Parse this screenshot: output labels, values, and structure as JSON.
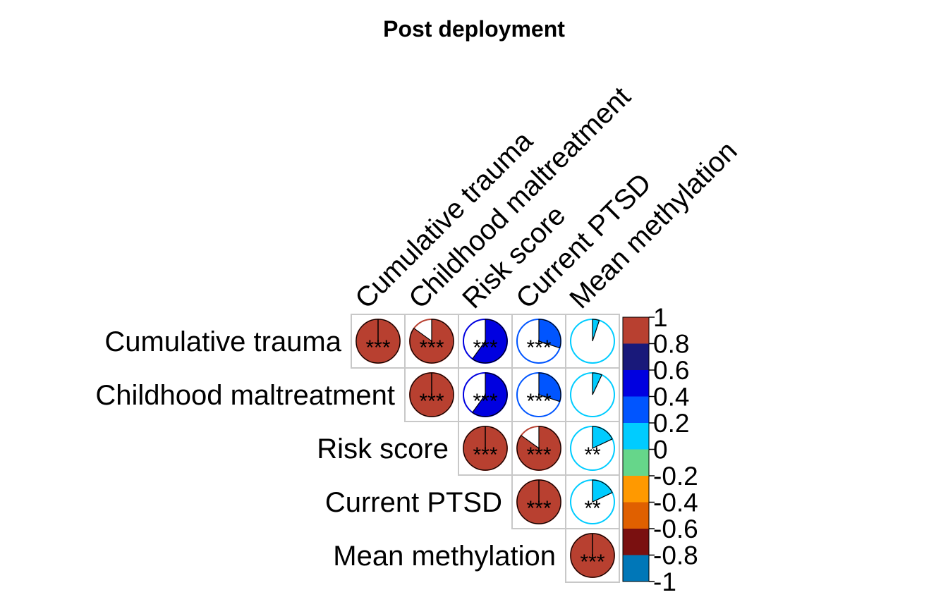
{
  "chart_data": {
    "type": "heatmap",
    "subtype": "correlation-pie-upper",
    "title": "Post deployment",
    "variables": [
      "Cumulative trauma",
      "Childhood maltreatment",
      "Risk score",
      "Current PTSD",
      "Mean methylation"
    ],
    "correlations": [
      [
        1.0,
        0.85,
        0.6,
        0.3,
        0.05
      ],
      [
        null,
        1.0,
        0.6,
        0.3,
        0.07
      ],
      [
        null,
        null,
        1.0,
        0.85,
        0.18
      ],
      [
        null,
        null,
        null,
        1.0,
        0.18
      ],
      [
        null,
        null,
        null,
        null,
        1.0
      ]
    ],
    "significance": [
      [
        "***",
        "***",
        "***",
        "***",
        ""
      ],
      [
        null,
        "***",
        "***",
        "***",
        ""
      ],
      [
        null,
        null,
        "***",
        "***",
        "**"
      ],
      [
        null,
        null,
        null,
        "***",
        "**"
      ],
      [
        null,
        null,
        null,
        null,
        "***"
      ]
    ],
    "colorbar": {
      "ticks": [
        "1",
        "0.8",
        "0.6",
        "0.4",
        "0.2",
        "0",
        "-0.2",
        "-0.4",
        "-0.6",
        "-0.8",
        "-1"
      ],
      "range": [
        -1,
        1
      ],
      "colors_top_to_bottom": [
        "#B84030",
        "#19197A",
        "#0000E0",
        "#0055FF",
        "#00CCFF",
        "#66D68A",
        "#FF9900",
        "#E06000",
        "#7A1010",
        "#0077B8"
      ]
    },
    "legend": "right",
    "grid": true
  }
}
